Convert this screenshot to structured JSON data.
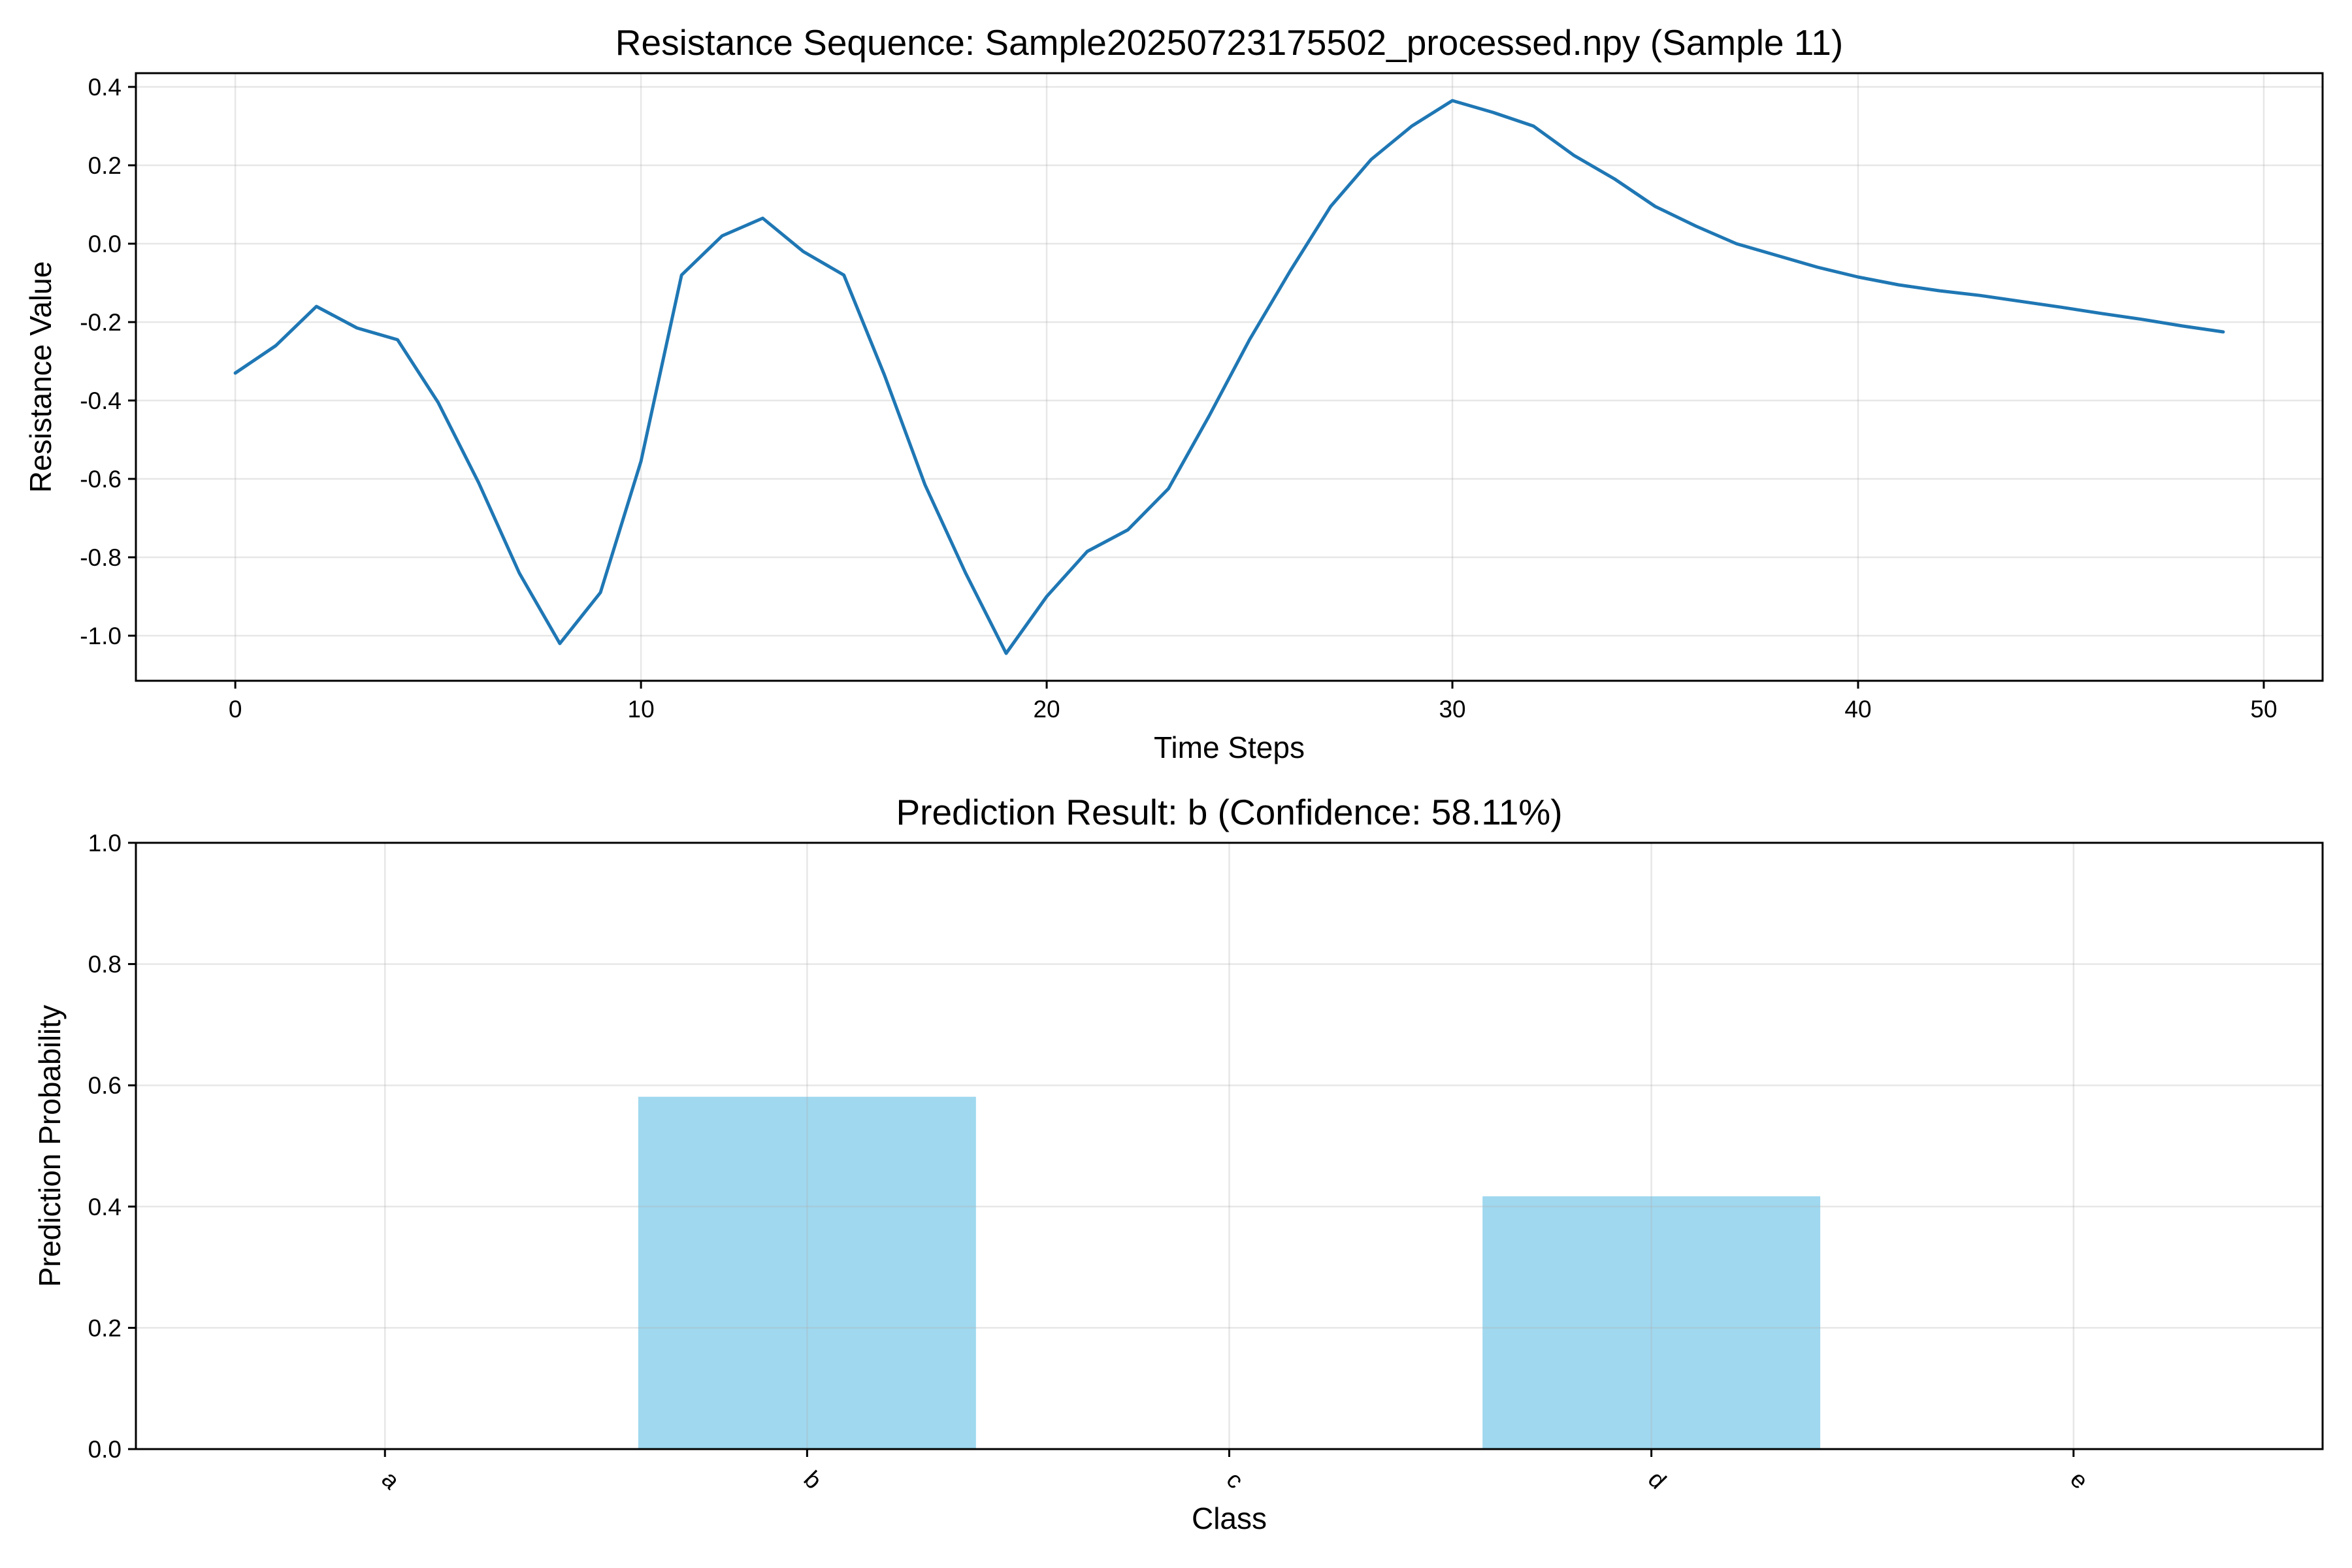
{
  "chart_data": [
    {
      "type": "line",
      "title": "Resistance Sequence: Sample20250723175502_processed.npy (Sample 11)",
      "xlabel": "Time Steps",
      "ylabel": "Resistance Value",
      "xlim": [
        -2.45,
        51.45
      ],
      "ylim": [
        -1.115,
        0.435
      ],
      "xticks": [
        0,
        10,
        20,
        30,
        40,
        50
      ],
      "xtick_labels": [
        "0",
        "10",
        "20",
        "30",
        "40",
        "50"
      ],
      "yticks": [
        -1.0,
        -0.8,
        -0.6,
        -0.4,
        -0.2,
        0.0,
        0.2,
        0.4
      ],
      "ytick_labels": [
        "-1.0",
        "-0.8",
        "-0.6",
        "-0.4",
        "-0.2",
        "0.0",
        "0.2",
        "0.4"
      ],
      "grid": true,
      "line_color": "#1f77b4",
      "series": [
        {
          "x": [
            0,
            1,
            2,
            3,
            4,
            5,
            6,
            7,
            8,
            9,
            10,
            11,
            12,
            13,
            14,
            15,
            16,
            17,
            18,
            19,
            20,
            21,
            22,
            23,
            24,
            25,
            26,
            27,
            28,
            29,
            30,
            31,
            32,
            33,
            34,
            35,
            36,
            37,
            38,
            39,
            40,
            41,
            42,
            43,
            44,
            45,
            46,
            47,
            48,
            49
          ],
          "values": [
            -0.33,
            -0.26,
            -0.16,
            -0.215,
            -0.245,
            -0.405,
            -0.61,
            -0.84,
            -1.02,
            -0.89,
            -0.555,
            -0.08,
            0.02,
            0.065,
            -0.02,
            -0.08,
            -0.335,
            -0.615,
            -0.84,
            -1.045,
            -0.9,
            -0.785,
            -0.73,
            -0.625,
            -0.44,
            -0.245,
            -0.07,
            0.095,
            0.215,
            0.3,
            0.365,
            0.335,
            0.3,
            0.225,
            0.165,
            0.095,
            0.045,
            0.0,
            -0.03,
            -0.06,
            -0.085,
            -0.105,
            -0.12,
            -0.132,
            -0.147,
            -0.162,
            -0.178,
            -0.193,
            -0.21,
            -0.225
          ]
        }
      ]
    },
    {
      "type": "bar",
      "title": "Prediction Result: b (Confidence: 58.11%)",
      "xlabel": "Class",
      "ylabel": "Prediction Probability",
      "categories": [
        "a",
        "b",
        "c",
        "d",
        "e"
      ],
      "values": [
        0.0,
        0.5811,
        0.0,
        0.4169,
        0.0
      ],
      "ylim": [
        0,
        1.0
      ],
      "yticks": [
        0.0,
        0.2,
        0.4,
        0.6,
        0.8,
        1.0
      ],
      "ytick_labels": [
        "0.0",
        "0.2",
        "0.4",
        "0.6",
        "0.8",
        "1.0"
      ],
      "xtick_rotation": 45,
      "grid": true,
      "bar_color": "#87ceeb",
      "bar_alpha": 0.8
    }
  ]
}
